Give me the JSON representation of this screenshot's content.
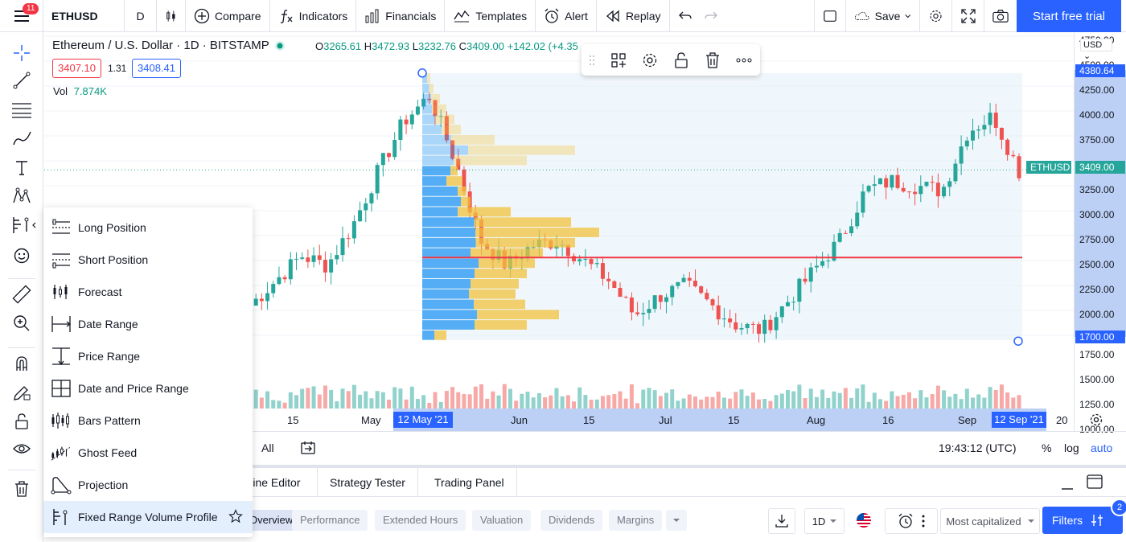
{
  "topbar": {
    "menu_badge": "11",
    "symbol": "ETHUSD",
    "interval": "D",
    "compare": "Compare",
    "indicators": "Indicators",
    "financials": "Financials",
    "templates": "Templates",
    "alert": "Alert",
    "replay": "Replay",
    "save": "Save",
    "start_trial": "Start free trial"
  },
  "legend": {
    "title": "Ethereum / U.S. Dollar · 1D · BITSTAMP",
    "open_k": "O",
    "open": "3265.61",
    "high_k": "H",
    "high": "3472.93",
    "low_k": "L",
    "low": "3232.76",
    "close_k": "C",
    "close": "3409.00",
    "change": "+142.02 (+4.35",
    "bid": "3407.10",
    "spread": "1.31",
    "ask": "3408.41",
    "vol_label": "Vol",
    "vol_value": "7.874K"
  },
  "price_axis": {
    "currency": "USD",
    "labels": [
      "4750.00",
      "4500.00",
      "4250.00",
      "4000.00",
      "3750.00",
      "3500.00",
      "3250.00",
      "3000.00",
      "2750.00",
      "2500.00",
      "2250.00",
      "2000.00",
      "1750.00",
      "1500.00",
      "1250.00",
      "1000.00"
    ],
    "tag_high": "4380.64",
    "tag_symbol": "ETHUSD",
    "tag_last": "3409.00",
    "tag_low": "1700.00"
  },
  "time_axis": {
    "labels": [
      "15",
      "May",
      "Jun",
      "15",
      "Jul",
      "15",
      "Aug",
      "16",
      "Sep",
      "20"
    ],
    "tag_start": "12 May '21",
    "tag_end": "12 Sep '21"
  },
  "bottom_bar": {
    "range_all": "All",
    "clock": "19:43:12 (UTC)",
    "percent": "%",
    "log": "log",
    "auto": "auto"
  },
  "panel_tabs": [
    "Pine Editor",
    "Strategy Tester",
    "Trading Panel"
  ],
  "screener": {
    "tabs": [
      "Overview",
      "Performance",
      "Extended Hours",
      "Valuation",
      "Dividends",
      "Margins"
    ],
    "interval": "1D",
    "preset": "Most capitalized",
    "filters": "Filters",
    "filters_count": "2"
  },
  "dropdown": {
    "items": [
      "Long Position",
      "Short Position",
      "Forecast",
      "Date Range",
      "Price Range",
      "Date and Price Range",
      "Bars Pattern",
      "Ghost Feed",
      "Projection",
      "Fixed Range Volume Profile"
    ]
  },
  "chart_data": {
    "type": "candlestick",
    "symbol": "ETHUSD",
    "interval": "1D",
    "ylim": [
      1000,
      4750
    ],
    "last_price": 3409.0,
    "point_of_control": 2530,
    "volume_profile_range": {
      "start": "12 May '21",
      "end": "12 Sep '21",
      "high": 4380.64,
      "low": 1700.0
    },
    "colors": {
      "up": "#26a69a",
      "down": "#ef5350",
      "poc": "#f23645",
      "accent": "#2962ff"
    },
    "weekly_closes": [
      2050,
      2300,
      2550,
      2450,
      2850,
      3400,
      3900,
      4150,
      3500,
      2700,
      2450,
      2650,
      2700,
      2500,
      2300,
      1950,
      2150,
      2250,
      2050,
      1850,
      1800,
      2100,
      2400,
      2700,
      3200,
      3300,
      3250,
      3200,
      3800,
      3950,
      3400
    ]
  }
}
